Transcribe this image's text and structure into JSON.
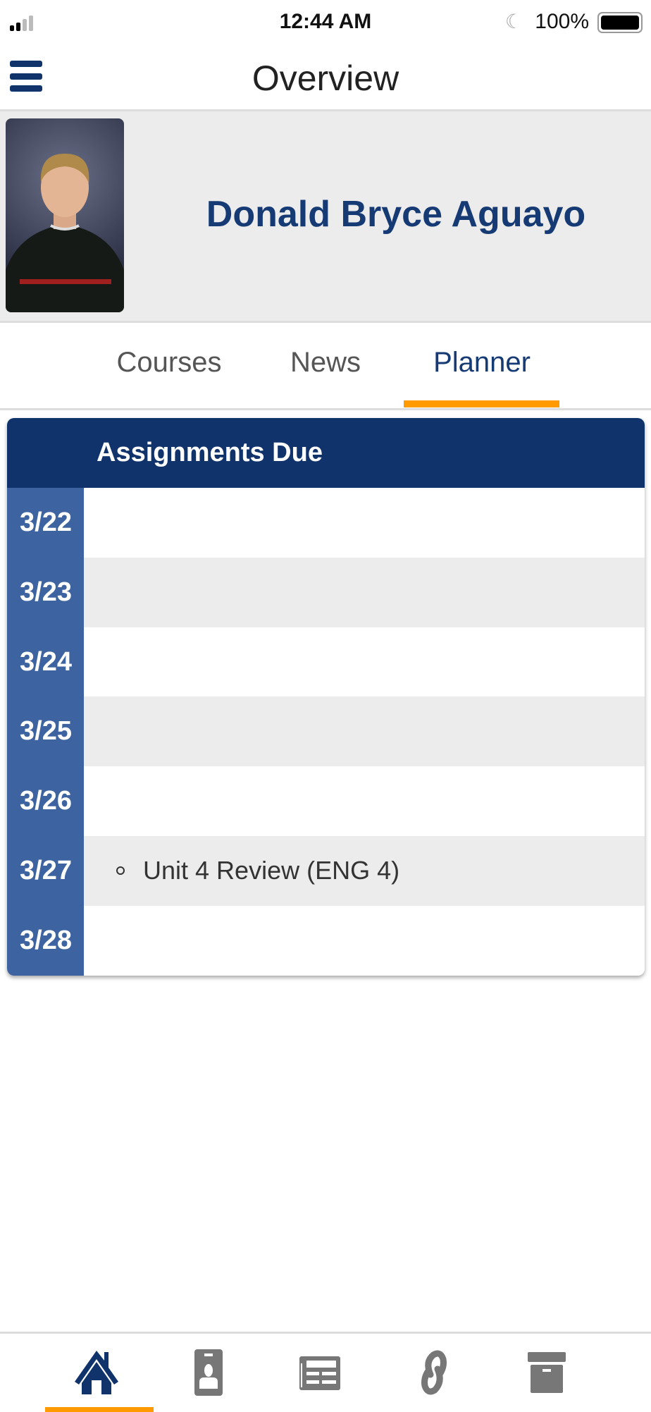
{
  "status_bar": {
    "time": "12:44 AM",
    "battery": "100%",
    "signal_bars": 2,
    "do_not_disturb": "moon-icon"
  },
  "header": {
    "title": "Overview",
    "menu_icon": "hamburger-icon"
  },
  "profile": {
    "name": "Donald Bryce Aguayo"
  },
  "tabs": [
    {
      "label": "Courses"
    },
    {
      "label": "News"
    },
    {
      "label": "Planner",
      "active": true
    }
  ],
  "planner": {
    "heading": "Assignments Due",
    "rows": [
      {
        "date": "3/22",
        "items": []
      },
      {
        "date": "3/23",
        "items": []
      },
      {
        "date": "3/24",
        "items": []
      },
      {
        "date": "3/25",
        "items": []
      },
      {
        "date": "3/26",
        "items": []
      },
      {
        "date": "3/27",
        "items": [
          "Unit 4 Review (ENG 4)"
        ]
      },
      {
        "date": "3/28",
        "items": []
      }
    ]
  },
  "bottom_nav": [
    {
      "icon": "home-icon",
      "active": true
    },
    {
      "icon": "id-badge-icon"
    },
    {
      "icon": "newspaper-icon"
    },
    {
      "icon": "link-icon"
    },
    {
      "icon": "archive-icon"
    }
  ],
  "colors": {
    "navy": "#10336c",
    "date_column": "#3d64a0",
    "accent": "#ff9a00",
    "inactive_icon": "#777777"
  }
}
